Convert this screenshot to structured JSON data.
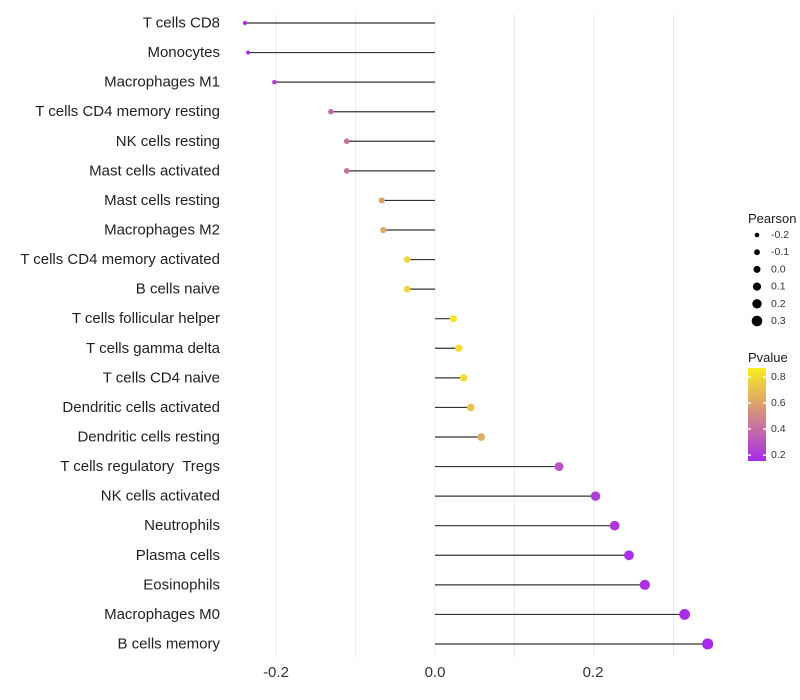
{
  "chart_data": {
    "type": "lollipop",
    "orientation": "horizontal",
    "title": "",
    "xlabel": "",
    "ylabel": "",
    "baseline_x": 0.0,
    "xlim": [
      -0.268,
      0.371
    ],
    "x_gridlines": [
      -0.2,
      -0.1,
      0.0,
      0.1,
      0.2,
      0.3
    ],
    "x_ticks": [
      -0.2,
      0.0,
      0.2
    ],
    "x_tick_labels": [
      "-0.2",
      "0.0",
      "0.2"
    ],
    "grid": "vertical-only",
    "points": [
      {
        "label": "T cells CD8",
        "pearson": -0.239,
        "pvalue": 0.16
      },
      {
        "label": "Monocytes",
        "pearson": -0.235,
        "pvalue": 0.17
      },
      {
        "label": "Macrophages M1",
        "pearson": -0.202,
        "pvalue": 0.22
      },
      {
        "label": "T cells CD4 memory resting",
        "pearson": -0.131,
        "pvalue": 0.38
      },
      {
        "label": "NK cells resting",
        "pearson": -0.111,
        "pvalue": 0.42
      },
      {
        "label": "Mast cells activated",
        "pearson": -0.111,
        "pvalue": 0.42
      },
      {
        "label": "Mast cells resting",
        "pearson": -0.067,
        "pvalue": 0.6
      },
      {
        "label": "Macrophages M2",
        "pearson": -0.065,
        "pvalue": 0.61
      },
      {
        "label": "T cells CD4 memory activated",
        "pearson": -0.035,
        "pvalue": 0.78
      },
      {
        "label": "B cells naive",
        "pearson": -0.035,
        "pvalue": 0.78
      },
      {
        "label": "T cells follicular helper",
        "pearson": 0.023,
        "pvalue": 0.83
      },
      {
        "label": "T cells gamma delta",
        "pearson": 0.03,
        "pvalue": 0.81
      },
      {
        "label": "T cells CD4 naive",
        "pearson": 0.036,
        "pvalue": 0.8
      },
      {
        "label": "Dendritic cells activated",
        "pearson": 0.045,
        "pvalue": 0.71
      },
      {
        "label": "Dendritic cells resting",
        "pearson": 0.058,
        "pvalue": 0.63
      },
      {
        "label": "T cells regulatory  Tregs",
        "pearson": 0.156,
        "pvalue": 0.3
      },
      {
        "label": "NK cells activated",
        "pearson": 0.202,
        "pvalue": 0.22
      },
      {
        "label": "Neutrophils",
        "pearson": 0.226,
        "pvalue": 0.2
      },
      {
        "label": "Plasma cells",
        "pearson": 0.244,
        "pvalue": 0.18
      },
      {
        "label": "Eosinophils",
        "pearson": 0.264,
        "pvalue": 0.175
      },
      {
        "label": "Macrophages M0",
        "pearson": 0.314,
        "pvalue": 0.16
      },
      {
        "label": "B cells memory",
        "pearson": 0.343,
        "pvalue": 0.155
      }
    ],
    "legend": {
      "position": "right",
      "size": {
        "title": "Pearson",
        "tick_labels": [
          "-0.2",
          "-0.1",
          "0.0",
          "0.1",
          "0.2",
          "0.3"
        ],
        "tick_values": [
          -0.2,
          -0.1,
          0.0,
          0.1,
          0.2,
          0.3
        ],
        "dot_color": "#000000"
      },
      "color": {
        "title": "Pvalue",
        "tick_labels": [
          "0.8",
          "0.6",
          "0.4",
          "0.2"
        ],
        "tick_values": [
          0.8,
          0.6,
          0.4,
          0.2
        ],
        "range": [
          0.155,
          0.87
        ],
        "low_color": "#A82BEA",
        "high_color": "#FAEE1E"
      }
    },
    "style": {
      "background": "#ffffff",
      "stem_color": "#333333",
      "grid_color": "#ececec",
      "text_color": "#1f1f1f"
    }
  }
}
